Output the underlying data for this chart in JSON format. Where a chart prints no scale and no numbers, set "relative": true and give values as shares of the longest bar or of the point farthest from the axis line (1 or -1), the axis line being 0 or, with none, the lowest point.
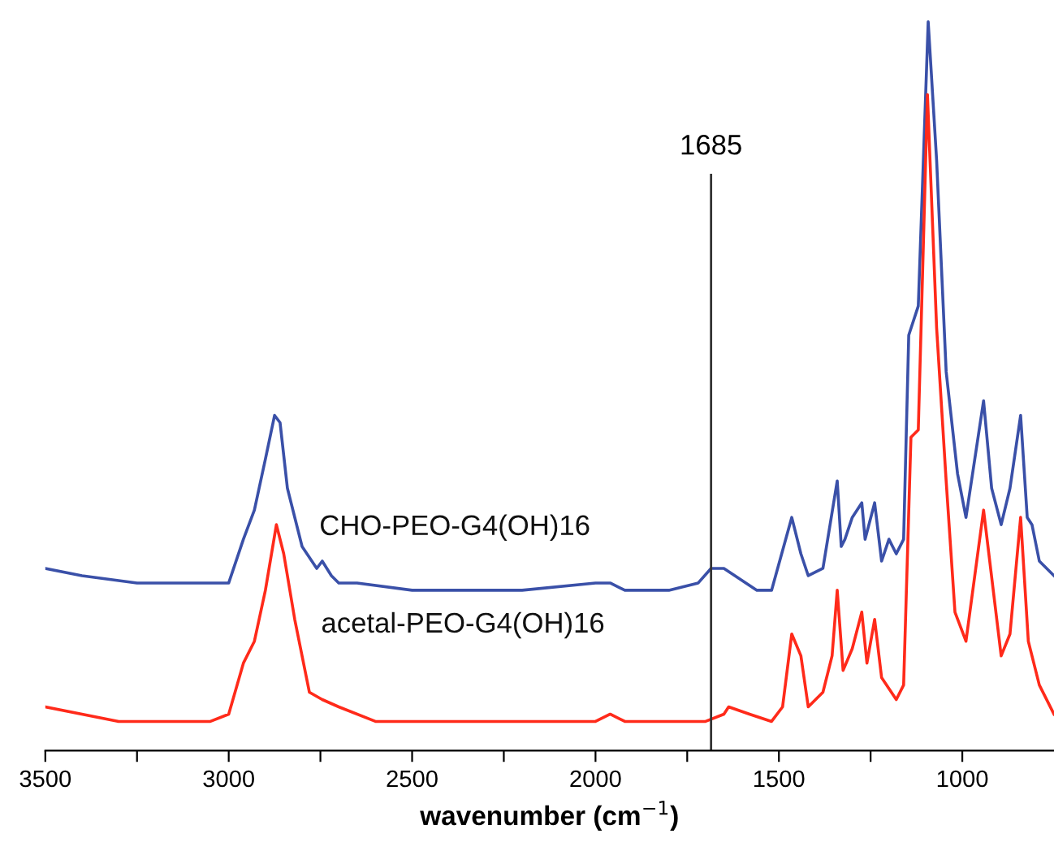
{
  "chart_data": {
    "type": "line",
    "relative": true,
    "xlabel": "wavenumber (cm$^{−1}$)",
    "xlim": [
      3500,
      750
    ],
    "xticks": [
      3500,
      {
        "value": 3250,
        "label": null
      },
      3000,
      {
        "value": 2750,
        "label": null
      },
      2500,
      {
        "value": 2250,
        "label": null
      },
      2000,
      {
        "value": 1750,
        "label": null
      },
      1500,
      {
        "value": 1250,
        "label": null
      },
      1000
    ],
    "grid": false,
    "legend": false,
    "marker": "none",
    "line_style": "solid",
    "ref_lines": [
      {
        "axis": "x",
        "value": 1685,
        "label": "1685",
        "color": "#333333"
      }
    ],
    "series": [
      {
        "name": "CHO-PEO-G4(OH)16",
        "color": "#3a50a8",
        "x": [
          3500,
          3400,
          3250,
          3050,
          3000,
          2960,
          2930,
          2900,
          2875,
          2860,
          2840,
          2800,
          2760,
          2745,
          2720,
          2700,
          2650,
          2500,
          2200,
          2000,
          1960,
          1920,
          1800,
          1720,
          1685,
          1650,
          1560,
          1520,
          1465,
          1440,
          1420,
          1380,
          1341,
          1330,
          1320,
          1300,
          1274,
          1265,
          1239,
          1220,
          1200,
          1180,
          1160,
          1146,
          1120,
          1093,
          1070,
          1044,
          1013,
          990,
          942,
          920,
          894,
          870,
          841,
          823,
          810,
          790,
          750
        ],
        "values": [
          0.25,
          0.24,
          0.23,
          0.23,
          0.23,
          0.29,
          0.33,
          0.4,
          0.46,
          0.45,
          0.36,
          0.28,
          0.25,
          0.26,
          0.24,
          0.23,
          0.23,
          0.22,
          0.22,
          0.23,
          0.23,
          0.22,
          0.22,
          0.23,
          0.25,
          0.25,
          0.22,
          0.22,
          0.32,
          0.27,
          0.24,
          0.25,
          0.37,
          0.28,
          0.29,
          0.32,
          0.34,
          0.29,
          0.34,
          0.26,
          0.29,
          0.27,
          0.29,
          0.57,
          0.61,
          1.0,
          0.81,
          0.52,
          0.38,
          0.32,
          0.48,
          0.36,
          0.31,
          0.36,
          0.46,
          0.32,
          0.31,
          0.26,
          0.24
        ]
      },
      {
        "name": "acetal-PEO-G4(OH)16",
        "color": "#ff2a1a",
        "x": [
          3500,
          3300,
          3050,
          3000,
          2960,
          2930,
          2900,
          2870,
          2850,
          2820,
          2780,
          2745,
          2700,
          2600,
          2300,
          2000,
          1960,
          1920,
          1700,
          1650,
          1637,
          1580,
          1520,
          1490,
          1465,
          1440,
          1420,
          1380,
          1355,
          1341,
          1325,
          1300,
          1274,
          1260,
          1239,
          1220,
          1180,
          1160,
          1140,
          1120,
          1095,
          1070,
          1044,
          1020,
          990,
          942,
          894,
          870,
          841,
          820,
          790,
          750
        ],
        "values": [
          0.06,
          0.04,
          0.04,
          0.05,
          0.12,
          0.15,
          0.22,
          0.31,
          0.27,
          0.18,
          0.08,
          0.07,
          0.06,
          0.04,
          0.04,
          0.04,
          0.05,
          0.04,
          0.04,
          0.05,
          0.06,
          0.05,
          0.04,
          0.06,
          0.16,
          0.13,
          0.06,
          0.08,
          0.13,
          0.22,
          0.11,
          0.14,
          0.19,
          0.12,
          0.18,
          0.1,
          0.07,
          0.09,
          0.43,
          0.44,
          0.9,
          0.58,
          0.37,
          0.19,
          0.15,
          0.33,
          0.13,
          0.16,
          0.32,
          0.15,
          0.09,
          0.05
        ]
      }
    ]
  }
}
